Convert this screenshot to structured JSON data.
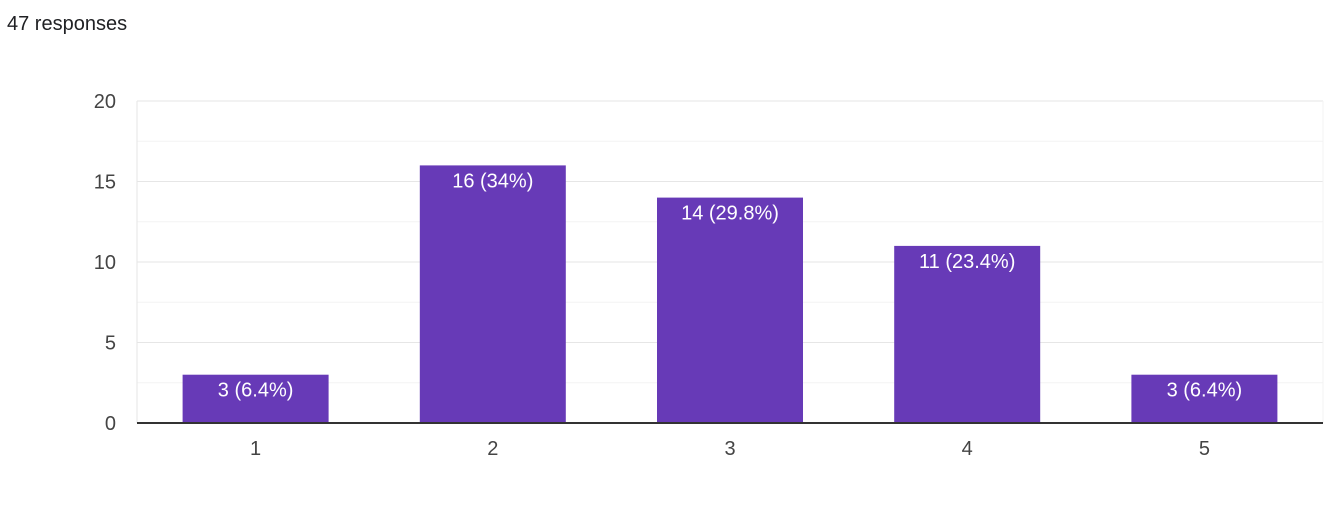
{
  "summary": {
    "responses_label": "47 responses"
  },
  "colors": {
    "bar": "#673ab7",
    "bar_label": "#ffffff",
    "axis": "#333333",
    "grid_major": "#e6e6e6",
    "grid_minor": "#f3f3f3",
    "tick_text": "#444444"
  },
  "chart_data": {
    "type": "bar",
    "title": "",
    "xlabel": "",
    "ylabel": "",
    "categories": [
      "1",
      "2",
      "3",
      "4",
      "5"
    ],
    "values": [
      3,
      16,
      14,
      11,
      3
    ],
    "data_labels": [
      "3 (6.4%)",
      "16 (34%)",
      "14 (29.8%)",
      "11 (23.4%)",
      "3 (6.4%)"
    ],
    "ylim": [
      0,
      20
    ],
    "yticks": [
      "0",
      "5",
      "10",
      "15",
      "20"
    ],
    "ytick_values": [
      0,
      5,
      10,
      15,
      20
    ],
    "grid": true,
    "legend": "none"
  }
}
